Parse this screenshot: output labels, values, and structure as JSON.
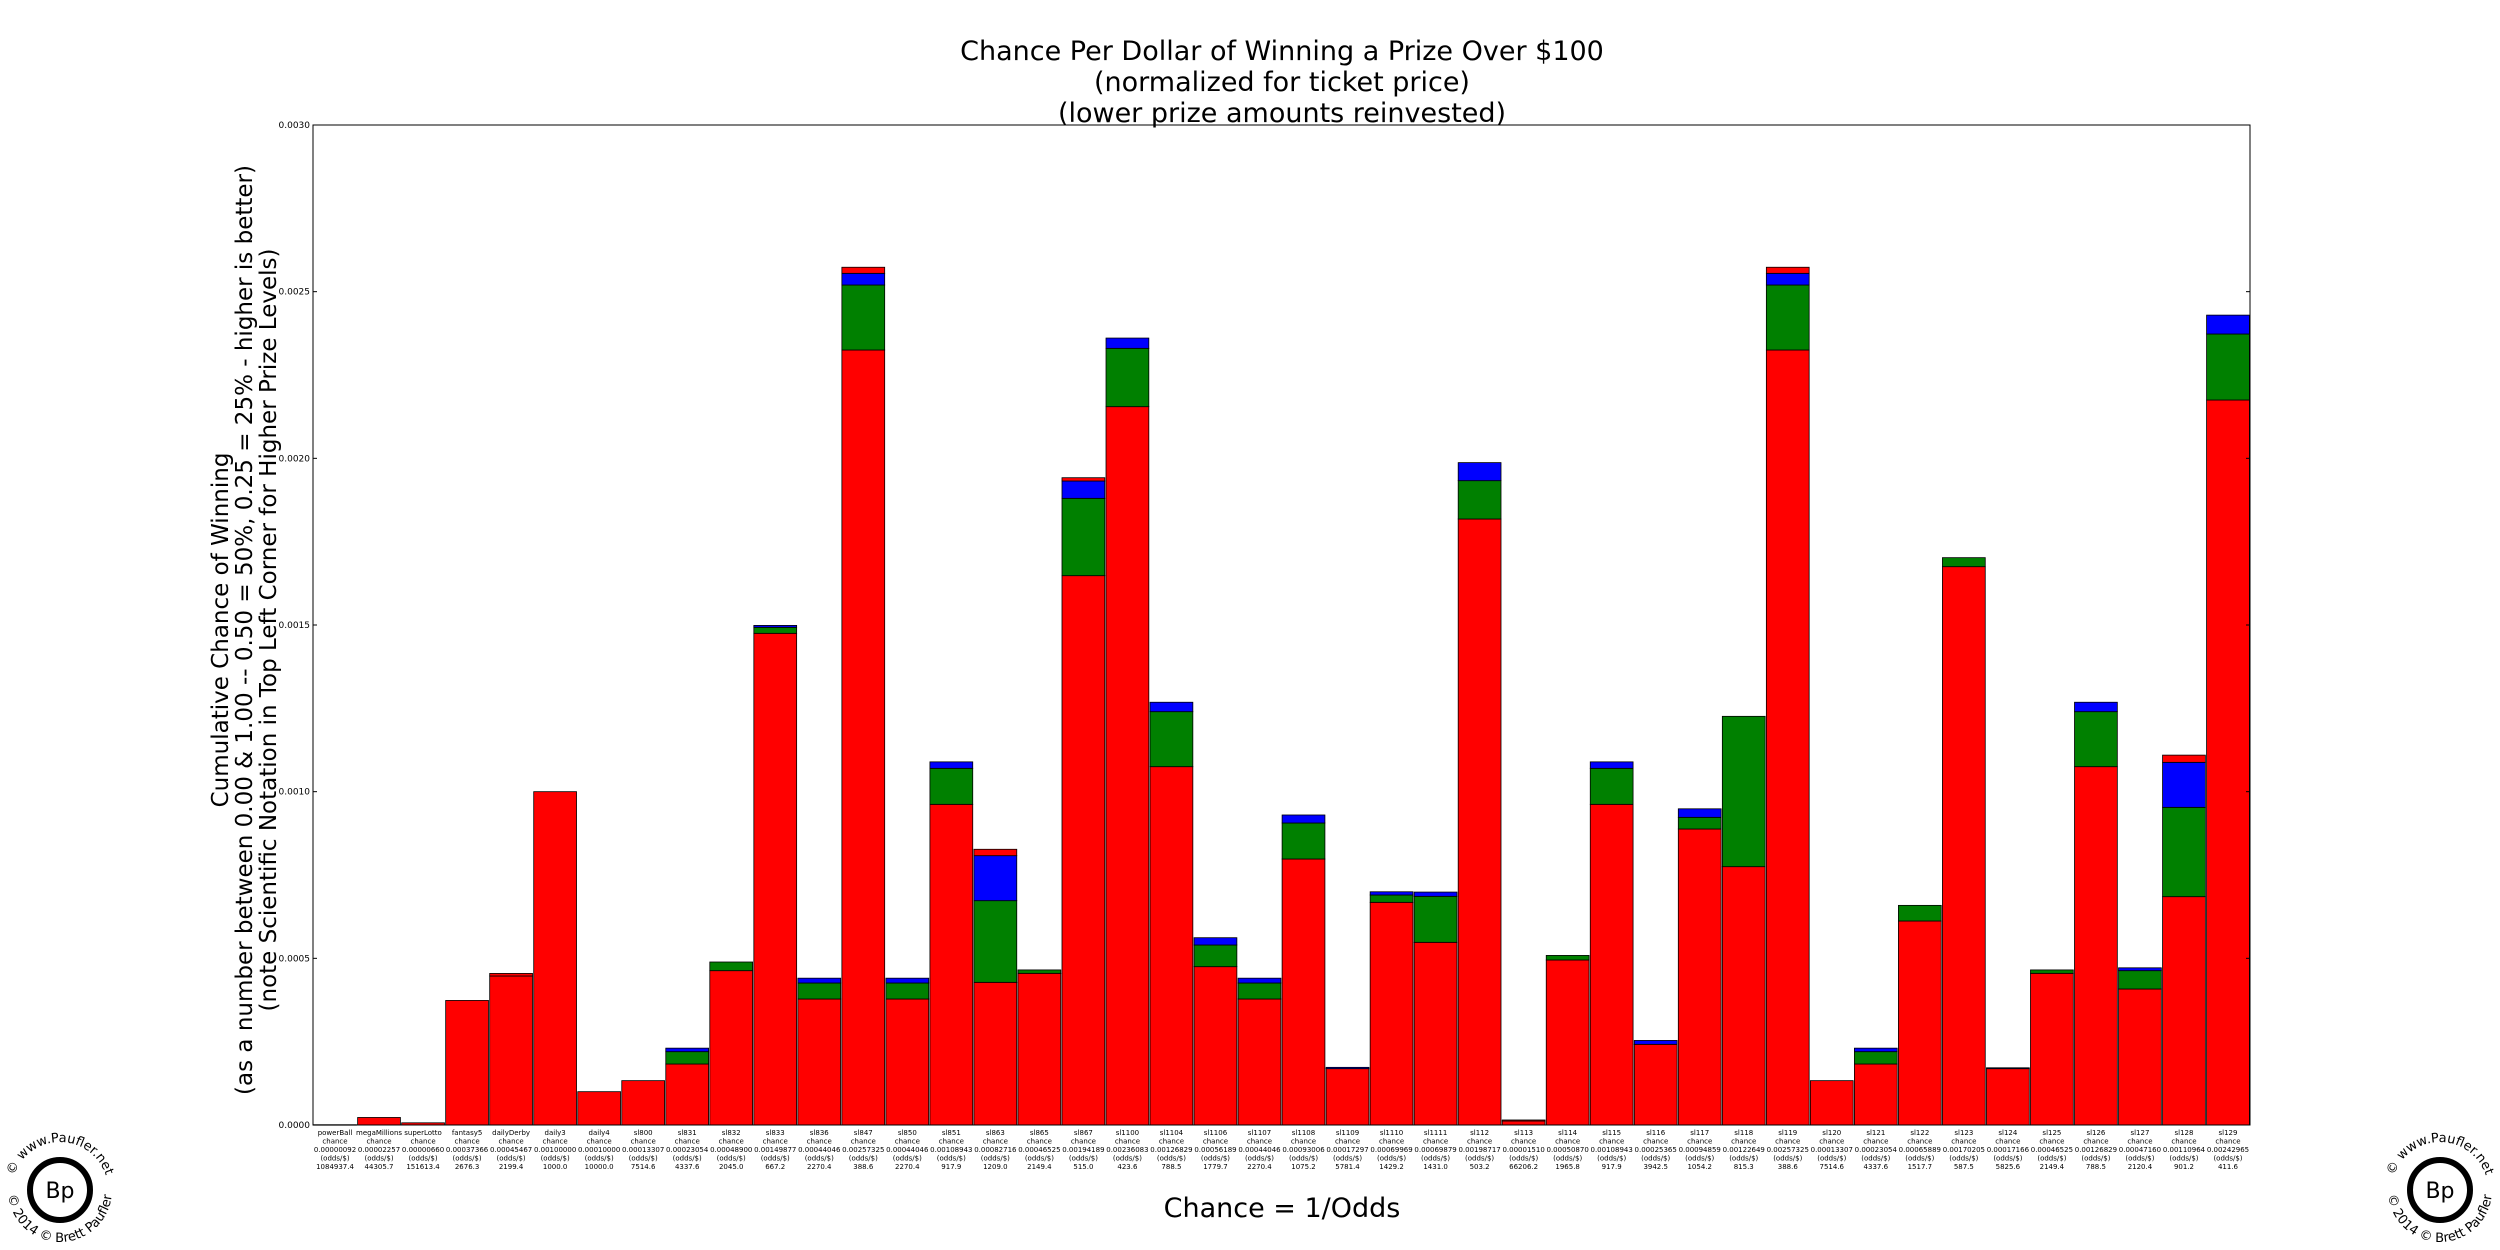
{
  "chart_data": {
    "type": "bar",
    "stacked": true,
    "title_lines": [
      "Chance Per Dollar of Winning a Prize Over $100",
      "(normalized for ticket price)",
      "(lower prize amounts reinvested)"
    ],
    "ylabel_lines": [
      "Cumulative Chance of Winning",
      "(as a number between 0.00 & 1.00 -- 0.50 = 50%, 0.25 = 25% - higher is better)",
      "(note Scientific Notation in Top Left Corner for Higher Prize Levels)"
    ],
    "xlabel": "Chance = 1/Odds",
    "ylim": [
      0,
      0.003
    ],
    "yticks": [
      "0.0000",
      "0.0005",
      "0.0010",
      "0.0015",
      "0.0020",
      "0.0025",
      "0.0030"
    ],
    "grid": false,
    "series_colors": [
      "#ff0000",
      "#008000",
      "#0000ff",
      "#ff0000"
    ],
    "bars": [
      {
        "l1": "powerBall",
        "l2": "chance",
        "l3": "0.00000092",
        "l4": "(odds/$)",
        "l5": "1084937.4",
        "segs": [
          9e-07,
          0,
          0,
          0
        ]
      },
      {
        "l1": "megaMillions",
        "l2": "chance",
        "l3": "0.00002257",
        "l4": "(odds/$)",
        "l5": "44305.7",
        "segs": [
          2.26e-05,
          0,
          0,
          0
        ]
      },
      {
        "l1": "superLotto",
        "l2": "chance",
        "l3": "0.00000660",
        "l4": "(odds/$)",
        "l5": "151613.4",
        "segs": [
          6.6e-06,
          0,
          0,
          0
        ]
      },
      {
        "l1": "fantasy5",
        "l2": "chance",
        "l3": "0.00037366",
        "l4": "(odds/$)",
        "l5": "2676.3",
        "segs": [
          0.00037366,
          0,
          0,
          0
        ]
      },
      {
        "l1": "dailyDerby",
        "l2": "chance",
        "l3": "0.00045467",
        "l4": "(odds/$)",
        "l5": "2199.4",
        "segs": [
          0.000447,
          0,
          0,
          7.7e-06
        ]
      },
      {
        "l1": "daily3",
        "l2": "chance",
        "l3": "0.00100000",
        "l4": "(odds/$)",
        "l5": "1000.0",
        "segs": [
          0.001,
          0,
          0,
          0
        ]
      },
      {
        "l1": "daily4",
        "l2": "chance",
        "l3": "0.00010000",
        "l4": "(odds/$)",
        "l5": "10000.0",
        "segs": [
          0.0001,
          0,
          0,
          0
        ]
      },
      {
        "l1": "sl800",
        "l2": "chance",
        "l3": "0.00013307",
        "l4": "(odds/$)",
        "l5": "7514.6",
        "segs": [
          0.00013307,
          0,
          0,
          0
        ]
      },
      {
        "l1": "sl831",
        "l2": "chance",
        "l3": "0.00023054",
        "l4": "(odds/$)",
        "l5": "4337.6",
        "segs": [
          0.000183,
          3.7e-05,
          1.054e-05,
          0
        ]
      },
      {
        "l1": "sl832",
        "l2": "chance",
        "l3": "0.00048900",
        "l4": "(odds/$)",
        "l5": "2045.0",
        "segs": [
          0.000463,
          2.6e-05,
          0,
          0
        ]
      },
      {
        "l1": "sl833",
        "l2": "chance",
        "l3": "0.00149877",
        "l4": "(odds/$)",
        "l5": "667.2",
        "segs": [
          0.001475,
          1.8e-05,
          5.77e-06,
          0
        ]
      },
      {
        "l1": "sl836",
        "l2": "chance",
        "l3": "0.00044046",
        "l4": "(odds/$)",
        "l5": "2270.4",
        "segs": [
          0.000378,
          4.8e-05,
          1.446e-05,
          0
        ]
      },
      {
        "l1": "sl847",
        "l2": "chance",
        "l3": "0.00257325",
        "l4": "(odds/$)",
        "l5": "388.6",
        "segs": [
          0.002325,
          0.000195,
          3.5e-05,
          1.825e-05
        ]
      },
      {
        "l1": "sl850",
        "l2": "chance",
        "l3": "0.00044046",
        "l4": "(odds/$)",
        "l5": "2270.4",
        "segs": [
          0.000378,
          4.8e-05,
          1.446e-05,
          0
        ]
      },
      {
        "l1": "sl851",
        "l2": "chance",
        "l3": "0.00108943",
        "l4": "(odds/$)",
        "l5": "917.9",
        "segs": [
          0.000962,
          0.000108,
          1.943e-05,
          0
        ]
      },
      {
        "l1": "sl863",
        "l2": "chance",
        "l3": "0.00082716",
        "l4": "(odds/$)",
        "l5": "1209.0",
        "segs": [
          0.000428,
          0.000245,
          0.000135,
          1.916e-05
        ]
      },
      {
        "l1": "sl865",
        "l2": "chance",
        "l3": "0.00046525",
        "l4": "(odds/$)",
        "l5": "2149.4",
        "segs": [
          0.000455,
          1.025e-05,
          0,
          0
        ]
      },
      {
        "l1": "sl867",
        "l2": "chance",
        "l3": "0.00194189",
        "l4": "(odds/$)",
        "l5": "515.0",
        "segs": [
          0.001648,
          0.000232,
          5.2e-05,
          9.89e-06
        ]
      },
      {
        "l1": "sl1100",
        "l2": "chance",
        "l3": "0.00236083",
        "l4": "(odds/$)",
        "l5": "423.6",
        "segs": [
          0.002155,
          0.000175,
          3.083e-05,
          0
        ]
      },
      {
        "l1": "sl1104",
        "l2": "chance",
        "l3": "0.00126829",
        "l4": "(odds/$)",
        "l5": "788.5",
        "segs": [
          0.001075,
          0.000165,
          2.829e-05,
          0
        ]
      },
      {
        "l1": "sl1106",
        "l2": "chance",
        "l3": "0.00056189",
        "l4": "(odds/$)",
        "l5": "1779.7",
        "segs": [
          0.000475,
          6.5e-05,
          2.189e-05,
          0
        ]
      },
      {
        "l1": "sl1107",
        "l2": "chance",
        "l3": "0.00044046",
        "l4": "(odds/$)",
        "l5": "2270.4",
        "segs": [
          0.000378,
          4.8e-05,
          1.446e-05,
          0
        ]
      },
      {
        "l1": "sl1108",
        "l2": "chance",
        "l3": "0.00093006",
        "l4": "(odds/$)",
        "l5": "1075.2",
        "segs": [
          0.000798,
          0.000108,
          2.406e-05,
          0
        ]
      },
      {
        "l1": "sl1109",
        "l2": "chance",
        "l3": "0.00017297",
        "l4": "(odds/$)",
        "l5": "5781.4",
        "segs": [
          0.000169,
          0,
          3.97e-06,
          0
        ]
      },
      {
        "l1": "sl1110",
        "l2": "chance",
        "l3": "0.00069969",
        "l4": "(odds/$)",
        "l5": "1429.2",
        "segs": [
          0.000668,
          2.2e-05,
          9.69e-06,
          0
        ]
      },
      {
        "l1": "sl1111",
        "l2": "chance",
        "l3": "0.00069879",
        "l4": "(odds/$)",
        "l5": "1431.0",
        "segs": [
          0.000548,
          0.000138,
          1.279e-05,
          0
        ]
      },
      {
        "l1": "sl112",
        "l2": "chance",
        "l3": "0.00198717",
        "l4": "(odds/$)",
        "l5": "503.2",
        "segs": [
          0.001818,
          0.000115,
          5.417e-05,
          0
        ]
      },
      {
        "l1": "sl113",
        "l2": "chance",
        "l3": "0.00001510",
        "l4": "(odds/$)",
        "l5": "66206.2",
        "segs": [
          1.21e-05,
          0,
          0,
          3e-06
        ]
      },
      {
        "l1": "sl114",
        "l2": "chance",
        "l3": "0.00050870",
        "l4": "(odds/$)",
        "l5": "1965.8",
        "segs": [
          0.000495,
          1.37e-05,
          0,
          0
        ]
      },
      {
        "l1": "sl115",
        "l2": "chance",
        "l3": "0.00108943",
        "l4": "(odds/$)",
        "l5": "917.9",
        "segs": [
          0.000962,
          0.000108,
          1.943e-05,
          0
        ]
      },
      {
        "l1": "sl116",
        "l2": "chance",
        "l3": "0.00025365",
        "l4": "(odds/$)",
        "l5": "3942.5",
        "segs": [
          0.000242,
          0,
          1.165e-05,
          0
        ]
      },
      {
        "l1": "sl117",
        "l2": "chance",
        "l3": "0.00094859",
        "l4": "(odds/$)",
        "l5": "1054.2",
        "segs": [
          0.000888,
          3.5e-05,
          2.559e-05,
          0
        ]
      },
      {
        "l1": "sl118",
        "l2": "chance",
        "l3": "0.00122649",
        "l4": "(odds/$)",
        "l5": "815.3",
        "segs": [
          0.000775,
          0.000451,
          0,
          0
        ]
      },
      {
        "l1": "sl119",
        "l2": "chance",
        "l3": "0.00257325",
        "l4": "(odds/$)",
        "l5": "388.6",
        "segs": [
          0.002325,
          0.000195,
          3.5e-05,
          1.825e-05
        ]
      },
      {
        "l1": "sl120",
        "l2": "chance",
        "l3": "0.00013307",
        "l4": "(odds/$)",
        "l5": "7514.6",
        "segs": [
          0.00013307,
          0,
          0,
          0
        ]
      },
      {
        "l1": "sl121",
        "l2": "chance",
        "l3": "0.00023054",
        "l4": "(odds/$)",
        "l5": "4337.6",
        "segs": [
          0.000183,
          3.7e-05,
          1.054e-05,
          0
        ]
      },
      {
        "l1": "sl122",
        "l2": "chance",
        "l3": "0.00065889",
        "l4": "(odds/$)",
        "l5": "1517.7",
        "segs": [
          0.000612,
          4.689e-05,
          0,
          0
        ]
      },
      {
        "l1": "sl123",
        "l2": "chance",
        "l3": "0.00170205",
        "l4": "(odds/$)",
        "l5": "587.5",
        "segs": [
          0.001675,
          2.705e-05,
          0,
          0
        ]
      },
      {
        "l1": "sl124",
        "l2": "chance",
        "l3": "0.00017166",
        "l4": "(odds/$)",
        "l5": "5825.6",
        "segs": [
          0.000169,
          0,
          2.66e-06,
          0
        ]
      },
      {
        "l1": "sl125",
        "l2": "chance",
        "l3": "0.00046525",
        "l4": "(odds/$)",
        "l5": "2149.4",
        "segs": [
          0.000455,
          1.025e-05,
          0,
          0
        ]
      },
      {
        "l1": "sl126",
        "l2": "chance",
        "l3": "0.00126829",
        "l4": "(odds/$)",
        "l5": "788.5",
        "segs": [
          0.001075,
          0.000165,
          2.829e-05,
          0
        ]
      },
      {
        "l1": "sl127",
        "l2": "chance",
        "l3": "0.00047160",
        "l4": "(odds/$)",
        "l5": "2120.4",
        "segs": [
          0.000408,
          5.5e-05,
          8.6e-06,
          0
        ]
      },
      {
        "l1": "sl128",
        "l2": "chance",
        "l3": "0.00110964",
        "l4": "(odds/$)",
        "l5": "901.2",
        "segs": [
          0.000685,
          0.000268,
          0.000135,
          2.164e-05
        ]
      },
      {
        "l1": "sl129",
        "l2": "chance",
        "l3": "0.00242965",
        "l4": "(odds/$)",
        "l5": "411.6",
        "segs": [
          0.002175,
          0.000198,
          5.665e-05,
          0
        ]
      }
    ]
  },
  "watermark": {
    "left": {
      "arc_text": "© www.Paufler.net",
      "arc_text_bottom": "© 2014 © Brett Paufler",
      "initials": "Bp"
    },
    "right": {
      "arc_text": "© www.Paufler.net",
      "arc_text_bottom": "© 2014 © Brett Paufler",
      "initials": "Bp"
    }
  }
}
